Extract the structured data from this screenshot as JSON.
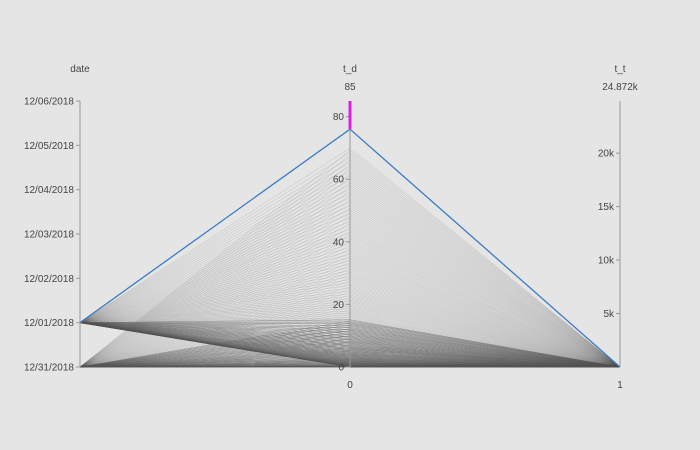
{
  "chart_data": {
    "type": "parcoords",
    "dimensions": [
      {
        "key": "date",
        "label": "date",
        "range": [
          0,
          12
        ],
        "ticks": [
          {
            "v": 0,
            "label": "12/31/2018"
          },
          {
            "v": 2,
            "label": "12/01/2018"
          },
          {
            "v": 4,
            "label": "12/02/2018"
          },
          {
            "v": 6,
            "label": "12/03/2018"
          },
          {
            "v": 8,
            "label": "12/04/2018"
          },
          {
            "v": 10,
            "label": "12/05/2018"
          },
          {
            "v": 12,
            "label": "12/06/2018"
          }
        ]
      },
      {
        "key": "t_d",
        "label": "t_d",
        "range": [
          0,
          85
        ],
        "range_labels": {
          "min": "0",
          "max": "85"
        },
        "ticks": [
          {
            "v": 0,
            "label": "0"
          },
          {
            "v": 20,
            "label": "20"
          },
          {
            "v": 40,
            "label": "40"
          },
          {
            "v": 60,
            "label": "60"
          },
          {
            "v": 80,
            "label": "80"
          }
        ],
        "constraint": [
          76,
          85
        ]
      },
      {
        "key": "t_t",
        "label": "t_t",
        "range": [
          1,
          24872
        ],
        "range_labels": {
          "min": "1",
          "max": "24.872k"
        },
        "ticks": [
          {
            "v": 5000,
            "label": "5k"
          },
          {
            "v": 10000,
            "label": "10k"
          },
          {
            "v": 15000,
            "label": "15k"
          },
          {
            "v": 20000,
            "label": "20k"
          }
        ]
      }
    ],
    "highlight_line": {
      "date": 2,
      "t_d": 76,
      "t_t": 1
    },
    "background_lines": {
      "count": 200,
      "date_values": [
        0,
        2
      ],
      "t_d_max": 70,
      "t_t": 1
    }
  },
  "colors": {
    "background": "#e5e5e5",
    "highlight": "#3b7dc0",
    "constraint": "#e21de2",
    "context_line": "#555555"
  }
}
